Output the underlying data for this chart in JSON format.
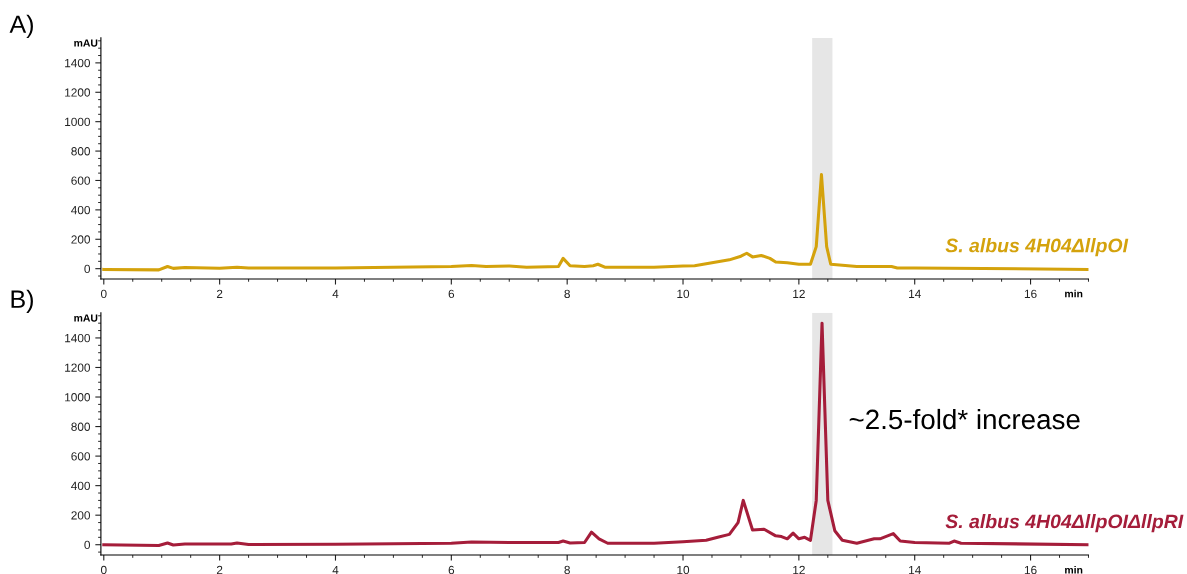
{
  "chart_data": [
    {
      "type": "line",
      "title": "A)",
      "xlabel": "min",
      "ylabel": "mAU",
      "xlim": [
        -0.05,
        17.0
      ],
      "xticks": [
        0,
        2,
        4,
        6,
        8,
        10,
        12,
        14,
        16
      ],
      "ylim": [
        -70,
        1570
      ],
      "yticks": [
        0,
        200,
        400,
        600,
        800,
        1000,
        1200,
        1400
      ],
      "grid": false,
      "legend": false,
      "marker": "none",
      "line_style": "solid",
      "bands": [
        {
          "axis": "x",
          "from": 12.23,
          "to": 12.58,
          "color": "#e6e6e6"
        }
      ],
      "series": [
        {
          "name": "S. albus 4H04ΔllpOI",
          "color": "#d4a20c",
          "x": [
            0,
            0.95,
            1.1,
            1.2,
            1.4,
            2,
            2.3,
            2.5,
            4,
            6,
            6.35,
            6.6,
            7,
            7.3,
            7.85,
            7.93,
            8.05,
            8.3,
            8.45,
            8.53,
            8.65,
            9.5,
            10,
            10.2,
            10.5,
            10.8,
            11.0,
            11.1,
            11.2,
            11.35,
            11.5,
            11.6,
            11.8,
            12.0,
            12.2,
            12.3,
            12.39,
            12.48,
            12.55,
            12.7,
            13,
            13.6,
            13.7,
            14,
            17
          ],
          "values": [
            -5,
            -8,
            15,
            2,
            8,
            3,
            10,
            5,
            5,
            15,
            22,
            15,
            18,
            10,
            15,
            70,
            20,
            15,
            20,
            30,
            10,
            10,
            18,
            20,
            40,
            60,
            85,
            105,
            80,
            90,
            70,
            45,
            40,
            30,
            30,
            150,
            640,
            150,
            30,
            25,
            15,
            15,
            5,
            5,
            -5
          ]
        }
      ]
    },
    {
      "type": "line",
      "title": "B)",
      "xlabel": "min",
      "ylabel": "mAU",
      "xlim": [
        -0.05,
        17.0
      ],
      "xticks": [
        0,
        2,
        4,
        6,
        8,
        10,
        12,
        14,
        16
      ],
      "ylim": [
        -70,
        1570
      ],
      "yticks": [
        0,
        200,
        400,
        600,
        800,
        1000,
        1200,
        1400
      ],
      "grid": false,
      "legend": false,
      "marker": "none",
      "line_style": "solid",
      "bands": [
        {
          "axis": "x",
          "from": 12.23,
          "to": 12.58,
          "color": "#e6e6e6"
        }
      ],
      "annotations": [
        "~2.5-fold* increase"
      ],
      "series": [
        {
          "name": "S. albus 4H04ΔllpOIΔllpRI",
          "color": "#a51d3a",
          "x": [
            0,
            0.95,
            1.1,
            1.2,
            1.4,
            2.2,
            2.3,
            2.5,
            4,
            6,
            6.35,
            7,
            7.85,
            7.93,
            8.05,
            8.3,
            8.42,
            8.55,
            8.7,
            9.5,
            10,
            10.4,
            10.6,
            10.8,
            10.95,
            11.04,
            11.2,
            11.4,
            11.6,
            11.7,
            11.8,
            11.9,
            12.0,
            12.1,
            12.2,
            12.3,
            12.4,
            12.5,
            12.62,
            12.75,
            13,
            13.3,
            13.4,
            13.63,
            13.75,
            14,
            14.6,
            14.68,
            14.8,
            17
          ],
          "values": [
            0,
            -5,
            12,
            -2,
            5,
            5,
            12,
            2,
            3,
            10,
            18,
            15,
            15,
            25,
            12,
            15,
            85,
            40,
            10,
            10,
            20,
            30,
            50,
            70,
            150,
            300,
            100,
            105,
            60,
            55,
            40,
            78,
            40,
            50,
            30,
            300,
            1500,
            300,
            95,
            30,
            10,
            40,
            40,
            75,
            25,
            15,
            10,
            25,
            10,
            0
          ]
        }
      ]
    }
  ]
}
